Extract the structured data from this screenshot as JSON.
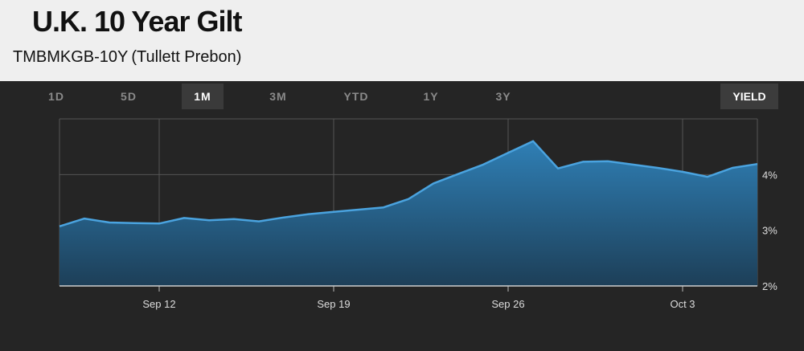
{
  "header": {
    "title": "U.K. 10 Year Gilt",
    "subtitle": "TMBMKGB-10Y (Tullett Prebon)"
  },
  "tabs": [
    {
      "label": "1D",
      "active": false
    },
    {
      "label": "5D",
      "active": false
    },
    {
      "label": "1M",
      "active": true
    },
    {
      "label": "3M",
      "active": false
    },
    {
      "label": "YTD",
      "active": false
    },
    {
      "label": "1Y",
      "active": false
    },
    {
      "label": "3Y",
      "active": false
    }
  ],
  "mode_button": "YIELD",
  "colors": {
    "line": "#4aa3df",
    "fill_top": "#2f7fb5",
    "fill_bottom": "#1d3f58",
    "grid": "#555555"
  },
  "chart_data": {
    "type": "area",
    "x": [
      "Sep 8",
      "Sep 9",
      "Sep 10",
      "Sep 11",
      "Sep 12",
      "Sep 13",
      "Sep 14",
      "Sep 15",
      "Sep 16",
      "Sep 17",
      "Sep 18",
      "Sep 19",
      "Sep 20",
      "Sep 21",
      "Sep 22",
      "Sep 23",
      "Sep 24",
      "Sep 25",
      "Sep 26",
      "Sep 27",
      "Sep 28",
      "Sep 29",
      "Sep 30",
      "Oct 1",
      "Oct 2",
      "Oct 3",
      "Oct 4",
      "Oct 5",
      "Oct 6"
    ],
    "values": [
      3.07,
      3.21,
      3.14,
      3.13,
      3.12,
      3.22,
      3.18,
      3.2,
      3.16,
      3.23,
      3.29,
      3.33,
      3.37,
      3.41,
      3.56,
      3.84,
      4.01,
      4.18,
      4.39,
      4.6,
      4.11,
      4.23,
      4.24,
      4.18,
      4.12,
      4.05,
      3.96,
      4.12,
      4.19
    ],
    "x_tick_labels": [
      "Sep 12",
      "Sep 19",
      "Sep 26",
      "Oct 3"
    ],
    "x_tick_positions": [
      "Sep 12",
      "Sep 19",
      "Sep 26",
      "Oct 3"
    ],
    "y_tick_labels": [
      "2%",
      "3%",
      "4%"
    ],
    "y_tick_values": [
      2,
      3,
      4
    ],
    "ylim": [
      2,
      5
    ],
    "grid": true,
    "title": "",
    "xlabel": "",
    "ylabel": ""
  }
}
